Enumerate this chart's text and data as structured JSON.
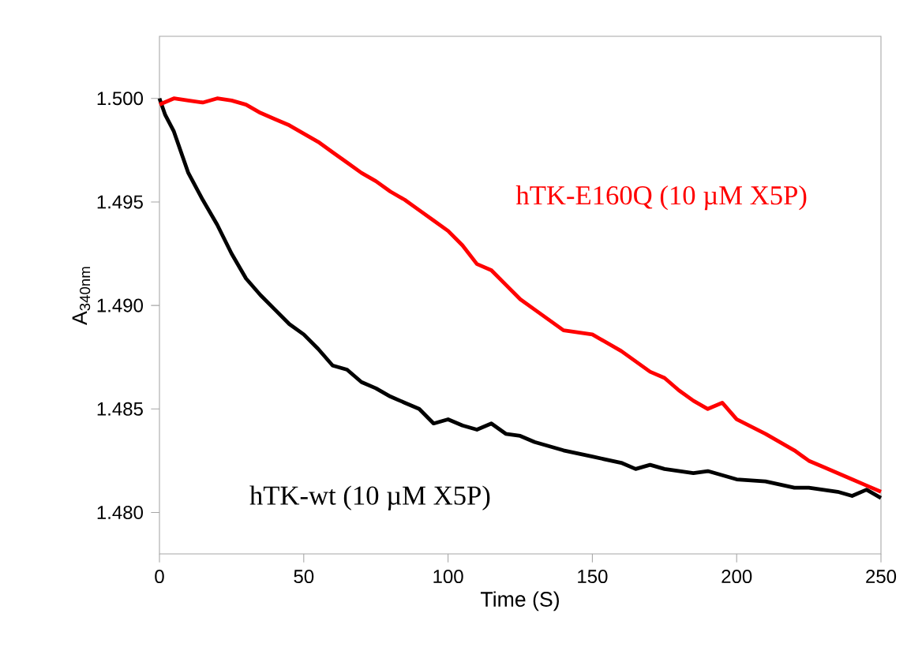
{
  "chart_data": {
    "type": "line",
    "xlabel": "Time (S)",
    "ylabel": "A$_{340nm}$",
    "xlim": [
      0,
      250
    ],
    "xticks": [
      0,
      50,
      100,
      150,
      200,
      250
    ],
    "ylim": [
      1.478,
      1.503
    ],
    "yticks": [
      {
        "value": 1.48,
        "label": "1.480"
      },
      {
        "value": 1.485,
        "label": "1.485"
      },
      {
        "value": 1.49,
        "label": "1.490"
      },
      {
        "value": 1.495,
        "label": "1.495"
      },
      {
        "value": 1.5,
        "label": "1.500"
      }
    ],
    "legend": false,
    "marker": "none",
    "line_style": "solid",
    "series": [
      {
        "name": "hTK-wt (10 µM X5P)",
        "color": "#000000",
        "x": [
          0,
          2,
          5,
          10,
          15,
          20,
          25,
          30,
          35,
          40,
          45,
          50,
          55,
          60,
          65,
          70,
          75,
          80,
          85,
          90,
          95,
          100,
          105,
          110,
          115,
          120,
          125,
          130,
          140,
          150,
          160,
          165,
          170,
          175,
          185,
          190,
          200,
          210,
          220,
          225,
          235,
          240,
          245,
          250
        ],
        "values": [
          1.5,
          1.4992,
          1.4984,
          1.4964,
          1.4951,
          1.4939,
          1.4925,
          1.4913,
          1.4905,
          1.4898,
          1.4891,
          1.4886,
          1.4879,
          1.4871,
          1.4869,
          1.4863,
          1.486,
          1.4856,
          1.4853,
          1.485,
          1.4843,
          1.4845,
          1.4842,
          1.484,
          1.4843,
          1.4838,
          1.4837,
          1.4834,
          1.483,
          1.4827,
          1.4824,
          1.4821,
          1.4823,
          1.4821,
          1.4819,
          1.482,
          1.4816,
          1.4815,
          1.4812,
          1.4812,
          1.481,
          1.4808,
          1.4811,
          1.4807
        ]
      },
      {
        "name": "hTK-E160Q (10 µM X5P)",
        "color": "#ff0000",
        "x": [
          0,
          5,
          10,
          15,
          20,
          25,
          30,
          35,
          40,
          45,
          50,
          55,
          60,
          65,
          70,
          75,
          80,
          85,
          90,
          95,
          100,
          105,
          110,
          115,
          120,
          125,
          130,
          140,
          150,
          160,
          170,
          175,
          180,
          185,
          190,
          195,
          200,
          210,
          220,
          225,
          230,
          240,
          245,
          250
        ],
        "values": [
          1.4997,
          1.5,
          1.4999,
          1.4998,
          1.5,
          1.4999,
          1.4997,
          1.4993,
          1.499,
          1.4987,
          1.4983,
          1.4979,
          1.4974,
          1.4969,
          1.4964,
          1.496,
          1.4955,
          1.4951,
          1.4946,
          1.4941,
          1.4936,
          1.4929,
          1.492,
          1.4917,
          1.491,
          1.4903,
          1.4898,
          1.4888,
          1.4886,
          1.4878,
          1.4868,
          1.4865,
          1.4859,
          1.4854,
          1.485,
          1.4853,
          1.4845,
          1.4838,
          1.483,
          1.4825,
          1.4822,
          1.4816,
          1.4813,
          1.481
        ]
      }
    ]
  }
}
